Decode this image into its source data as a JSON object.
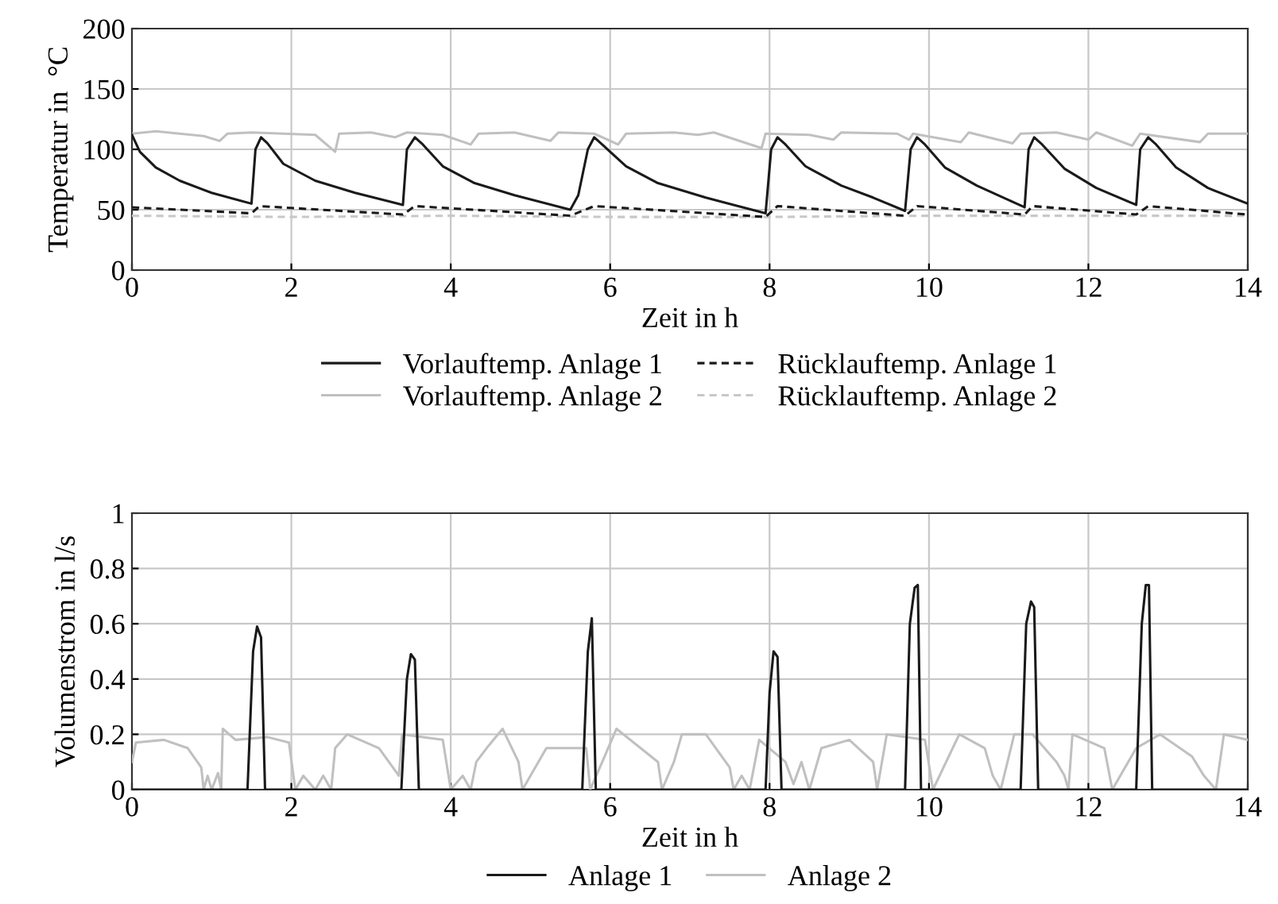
{
  "chart_data": [
    {
      "type": "line",
      "xlabel": "Zeit in h",
      "ylabel": "Temperatur in  °C",
      "xlim": [
        0,
        14
      ],
      "xticks": [
        0,
        2,
        4,
        6,
        8,
        10,
        12,
        14
      ],
      "ylim": [
        0,
        200
      ],
      "yticks": [
        0,
        50,
        100,
        150,
        200
      ],
      "grid": true,
      "legend": "bottom",
      "marker": "none",
      "series": [
        {
          "name": "Vorlauftemp. Anlage 1",
          "color": "#1a1a1a",
          "line_style": "solid",
          "x": [
            0,
            0.1,
            0.3,
            0.6,
            1.0,
            1.5,
            1.55,
            1.62,
            1.7,
            1.9,
            2.3,
            2.8,
            3.4,
            3.45,
            3.55,
            3.65,
            3.9,
            4.3,
            4.8,
            5.5,
            5.6,
            5.72,
            5.8,
            5.9,
            6.2,
            6.6,
            7.2,
            7.95,
            8.02,
            8.1,
            8.2,
            8.45,
            8.9,
            9.3,
            9.7,
            9.77,
            9.85,
            9.95,
            10.2,
            10.6,
            11.2,
            11.25,
            11.32,
            11.42,
            11.7,
            12.1,
            12.6,
            12.65,
            12.75,
            12.85,
            13.1,
            13.5,
            14
          ],
          "values": [
            112,
            98,
            85,
            74,
            64,
            55,
            100,
            110,
            105,
            88,
            74,
            64,
            54,
            100,
            110,
            104,
            86,
            72,
            62,
            50,
            62,
            100,
            110,
            104,
            86,
            72,
            60,
            47,
            100,
            110,
            104,
            86,
            70,
            60,
            49,
            100,
            110,
            104,
            85,
            70,
            52,
            100,
            110,
            104,
            84,
            68,
            54,
            100,
            110,
            104,
            85,
            68,
            55
          ]
        },
        {
          "name": "Rücklauftemp. Anlage 1",
          "color": "#1a1a1a",
          "line_style": "dashed",
          "x": [
            0,
            1.5,
            1.6,
            3.4,
            3.55,
            5.5,
            5.8,
            7.95,
            8.1,
            9.7,
            9.85,
            11.2,
            11.3,
            12.6,
            12.75,
            14
          ],
          "values": [
            52,
            47,
            53,
            46,
            53,
            45,
            53,
            44,
            53,
            45,
            53,
            46,
            53,
            46,
            53,
            46
          ]
        },
        {
          "name": "Vorlauftemp. Anlage 2",
          "color": "#c0c0c0",
          "line_style": "solid",
          "x": [
            0,
            0.3,
            0.9,
            1.1,
            1.2,
            1.5,
            2.3,
            2.55,
            2.6,
            3.0,
            3.3,
            3.45,
            3.9,
            4.25,
            4.35,
            4.8,
            5.25,
            5.35,
            5.8,
            6.1,
            6.2,
            6.8,
            7.1,
            7.3,
            7.9,
            7.95,
            8.5,
            8.8,
            8.9,
            9.6,
            9.75,
            9.8,
            10.4,
            10.5,
            11.05,
            11.15,
            11.6,
            12.0,
            12.1,
            12.55,
            12.65,
            13.4,
            13.5,
            14
          ],
          "values": [
            113,
            115,
            111,
            107,
            113,
            114,
            112,
            98,
            113,
            114,
            110,
            114,
            112,
            104,
            113,
            114,
            107,
            114,
            113,
            104,
            113,
            114,
            112,
            114,
            101,
            113,
            112,
            108,
            114,
            113,
            108,
            113,
            106,
            114,
            105,
            113,
            114,
            108,
            114,
            103,
            113,
            106,
            113,
            113
          ]
        },
        {
          "name": "Rücklauftemp. Anlage 2",
          "color": "#c8c8c8",
          "line_style": "dashed",
          "x": [
            0,
            2,
            4,
            6,
            8,
            10,
            12,
            14
          ],
          "values": [
            45,
            44,
            45,
            44,
            44,
            45,
            45,
            45
          ]
        }
      ]
    },
    {
      "type": "line",
      "xlabel": "Zeit in h",
      "ylabel": "Volumenstrom in l/s",
      "xlim": [
        0,
        14
      ],
      "xticks": [
        0,
        2,
        4,
        6,
        8,
        10,
        12,
        14
      ],
      "ylim": [
        0,
        1
      ],
      "yticks": [
        0,
        {
          "value": 0.2,
          "label": "0.2"
        },
        {
          "value": 0.4,
          "label": "0.4"
        },
        {
          "value": 0.6,
          "label": "0.6"
        },
        {
          "value": 0.8,
          "label": "0.8"
        },
        1
      ],
      "grid": true,
      "legend": "bottom",
      "marker": "none",
      "series": [
        {
          "name": "Anlage 1",
          "color": "#1a1a1a",
          "line_style": "solid",
          "x": [
            0,
            1.45,
            1.52,
            1.57,
            1.62,
            1.67,
            3.38,
            3.45,
            3.5,
            3.55,
            3.6,
            5.65,
            5.72,
            5.77,
            5.82,
            7.95,
            8.0,
            8.05,
            8.1,
            8.15,
            9.7,
            9.76,
            9.82,
            9.86,
            9.9,
            11.15,
            11.22,
            11.28,
            11.32,
            11.37,
            12.6,
            12.67,
            12.72,
            12.76,
            12.8,
            14
          ],
          "values": [
            0,
            0,
            0.5,
            0.59,
            0.55,
            0,
            0,
            0.4,
            0.49,
            0.47,
            0,
            0,
            0.5,
            0.62,
            0,
            0,
            0.35,
            0.5,
            0.48,
            0,
            0,
            0.6,
            0.73,
            0.74,
            0,
            0,
            0.6,
            0.68,
            0.66,
            0,
            0,
            0.6,
            0.74,
            0.74,
            0,
            0
          ]
        },
        {
          "name": "Anlage 2",
          "color": "#c0c0c0",
          "line_style": "solid",
          "x": [
            0,
            0.05,
            0.4,
            0.7,
            0.87,
            0.9,
            0.95,
            1.0,
            1.08,
            1.12,
            1.14,
            1.3,
            1.7,
            1.97,
            2.05,
            2.15,
            2.3,
            2.4,
            2.5,
            2.55,
            2.7,
            3.1,
            3.35,
            3.39,
            3.9,
            4.0,
            4.15,
            4.25,
            4.32,
            4.45,
            4.65,
            4.85,
            4.9,
            5.2,
            5.7,
            5.75,
            6.08,
            6.6,
            6.65,
            6.8,
            6.9,
            7.2,
            7.5,
            7.55,
            7.65,
            7.75,
            7.87,
            8.2,
            8.3,
            8.4,
            8.5,
            8.65,
            9.0,
            9.3,
            9.35,
            9.47,
            9.95,
            10.05,
            10.38,
            10.7,
            10.8,
            10.9,
            11.07,
            11.3,
            11.6,
            11.7,
            11.75,
            11.8,
            12.2,
            12.3,
            12.6,
            12.9,
            13.3,
            13.45,
            13.6,
            13.7,
            14
          ],
          "values": [
            0.1,
            0.17,
            0.18,
            0.15,
            0.08,
            0,
            0.05,
            0,
            0.06,
            0,
            0.22,
            0.18,
            0.19,
            0.17,
            0,
            0.05,
            0,
            0.05,
            0,
            0.15,
            0.2,
            0.15,
            0.05,
            0.2,
            0.18,
            0,
            0.05,
            0,
            0.1,
            0.15,
            0.22,
            0.1,
            0,
            0.15,
            0.15,
            0,
            0.22,
            0.1,
            0,
            0.1,
            0.2,
            0.2,
            0.08,
            0,
            0.05,
            0,
            0.18,
            0.1,
            0.02,
            0.1,
            0,
            0.15,
            0.18,
            0.1,
            0,
            0.2,
            0.18,
            0,
            0.2,
            0.15,
            0.05,
            0,
            0.2,
            0.2,
            0.1,
            0.05,
            0,
            0.2,
            0.15,
            0,
            0.15,
            0.2,
            0.12,
            0.05,
            0,
            0.2,
            0.18
          ]
        }
      ]
    }
  ]
}
